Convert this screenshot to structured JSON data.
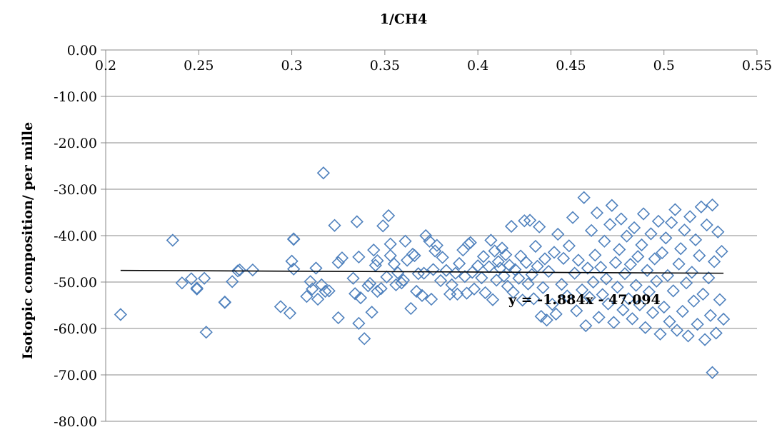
{
  "chart_data": {
    "type": "scatter",
    "title": "",
    "xlabel": "1/CH4",
    "ylabel": "Isotopic composition/ per mille",
    "xlim": [
      0.2,
      0.55
    ],
    "ylim": [
      -80,
      0
    ],
    "x_ticks": [
      "0.2",
      "0.25",
      "0.3",
      "0.35",
      "0.4",
      "0.45",
      "0.5",
      "0.55"
    ],
    "y_ticks": [
      "0.00",
      "-10.00",
      "-20.00",
      "-30.00",
      "-40.00",
      "-50.00",
      "-60.00",
      "-70.00",
      "-80.00"
    ],
    "x_axis_position": "top",
    "grid": "horizontal",
    "legend": "none",
    "marker": "diamond",
    "marker_color": "#4f81bd",
    "trendline": {
      "equation_label": "y = -1.884x - 47.094",
      "slope": -1.884,
      "intercept": -47.094,
      "x_range": [
        0.208,
        0.532
      ],
      "color": "#000000"
    },
    "series": [
      {
        "points": [
          [
            0.208,
            -57.0
          ],
          [
            0.236,
            -41.0
          ],
          [
            0.241,
            -50.2
          ],
          [
            0.246,
            -49.3
          ],
          [
            0.249,
            -51.5
          ],
          [
            0.249,
            -51.3
          ],
          [
            0.253,
            -49.2
          ],
          [
            0.254,
            -60.8
          ],
          [
            0.264,
            -54.4
          ],
          [
            0.264,
            -54.3
          ],
          [
            0.268,
            -49.9
          ],
          [
            0.271,
            -47.6
          ],
          [
            0.272,
            -47.4
          ],
          [
            0.279,
            -47.4
          ],
          [
            0.294,
            -55.3
          ],
          [
            0.299,
            -56.7
          ],
          [
            0.3,
            -45.5
          ],
          [
            0.301,
            -47.2
          ],
          [
            0.301,
            -40.8
          ],
          [
            0.301,
            -40.7
          ],
          [
            0.308,
            -53.1
          ],
          [
            0.31,
            -49.9
          ],
          [
            0.311,
            -51.5
          ],
          [
            0.313,
            -47.0
          ],
          [
            0.314,
            -53.7
          ],
          [
            0.316,
            -50.6
          ],
          [
            0.317,
            -26.5
          ],
          [
            0.318,
            -52.0
          ],
          [
            0.32,
            -51.9
          ],
          [
            0.323,
            -37.8
          ],
          [
            0.325,
            -45.8
          ],
          [
            0.325,
            -57.7
          ],
          [
            0.327,
            -44.8
          ],
          [
            0.333,
            -49.2
          ],
          [
            0.334,
            -52.5
          ],
          [
            0.335,
            -37.0
          ],
          [
            0.336,
            -58.9
          ],
          [
            0.336,
            -44.6
          ],
          [
            0.337,
            -53.4
          ],
          [
            0.339,
            -62.2
          ],
          [
            0.341,
            -50.8
          ],
          [
            0.342,
            -50.3
          ],
          [
            0.343,
            -56.5
          ],
          [
            0.344,
            -43.1
          ],
          [
            0.345,
            -46.4
          ],
          [
            0.346,
            -52.0
          ],
          [
            0.346,
            -45.4
          ],
          [
            0.348,
            -51.4
          ],
          [
            0.349,
            -37.9
          ],
          [
            0.351,
            -48.9
          ],
          [
            0.352,
            -35.7
          ],
          [
            0.353,
            -44.3
          ],
          [
            0.353,
            -41.8
          ],
          [
            0.355,
            -46.1
          ],
          [
            0.356,
            -50.6
          ],
          [
            0.357,
            -48.0
          ],
          [
            0.359,
            -50.2
          ],
          [
            0.36,
            -49.6
          ],
          [
            0.361,
            -41.2
          ],
          [
            0.362,
            -45.3
          ],
          [
            0.364,
            -55.7
          ],
          [
            0.365,
            -44.0
          ],
          [
            0.366,
            -44.3
          ],
          [
            0.367,
            -52.0
          ],
          [
            0.368,
            -48.2
          ],
          [
            0.37,
            -52.9
          ],
          [
            0.371,
            -48.1
          ],
          [
            0.372,
            -40.0
          ],
          [
            0.374,
            -41.2
          ],
          [
            0.375,
            -53.7
          ],
          [
            0.376,
            -47.3
          ],
          [
            0.377,
            -43.3
          ],
          [
            0.378,
            -42.1
          ],
          [
            0.38,
            -49.7
          ],
          [
            0.381,
            -44.7
          ],
          [
            0.383,
            -47.5
          ],
          [
            0.385,
            -52.6
          ],
          [
            0.386,
            -50.6
          ],
          [
            0.388,
            -48.1
          ],
          [
            0.389,
            -52.6
          ],
          [
            0.39,
            -46.0
          ],
          [
            0.392,
            -43.1
          ],
          [
            0.393,
            -48.8
          ],
          [
            0.394,
            -52.4
          ],
          [
            0.395,
            -41.8
          ],
          [
            0.396,
            -41.5
          ],
          [
            0.397,
            -47.9
          ],
          [
            0.398,
            -51.5
          ],
          [
            0.4,
            -46.5
          ],
          [
            0.402,
            -49.1
          ],
          [
            0.403,
            -44.5
          ],
          [
            0.404,
            -52.3
          ],
          [
            0.406,
            -46.7
          ],
          [
            0.407,
            -41.0
          ],
          [
            0.408,
            -53.8
          ],
          [
            0.409,
            -43.3
          ],
          [
            0.41,
            -49.6
          ],
          [
            0.411,
            -45.6
          ],
          [
            0.412,
            -47.0
          ],
          [
            0.413,
            -42.7
          ],
          [
            0.414,
            -48.7
          ],
          [
            0.415,
            -44.1
          ],
          [
            0.416,
            -50.9
          ],
          [
            0.417,
            -46.4
          ],
          [
            0.418,
            -38.0
          ],
          [
            0.419,
            -52.2
          ],
          [
            0.42,
            -47.3
          ],
          [
            0.422,
            -49.2
          ],
          [
            0.423,
            -44.4
          ],
          [
            0.424,
            -53.9
          ],
          [
            0.425,
            -36.8
          ],
          [
            0.426,
            -45.8
          ],
          [
            0.427,
            -50.4
          ],
          [
            0.428,
            -36.7
          ],
          [
            0.429,
            -48.4
          ],
          [
            0.43,
            -53.6
          ],
          [
            0.431,
            -42.3
          ],
          [
            0.432,
            -46.6
          ],
          [
            0.433,
            -38.1
          ],
          [
            0.434,
            -57.4
          ],
          [
            0.435,
            -51.2
          ],
          [
            0.436,
            -45.0
          ],
          [
            0.437,
            -58.2
          ],
          [
            0.438,
            -47.7
          ],
          [
            0.44,
            -54.8
          ],
          [
            0.441,
            -43.6
          ],
          [
            0.442,
            -56.9
          ],
          [
            0.443,
            -39.7
          ],
          [
            0.445,
            -50.5
          ],
          [
            0.446,
            -44.9
          ],
          [
            0.448,
            -53.0
          ],
          [
            0.449,
            -42.2
          ],
          [
            0.451,
            -36.1
          ],
          [
            0.452,
            -48.1
          ],
          [
            0.453,
            -56.2
          ],
          [
            0.454,
            -45.3
          ],
          [
            0.456,
            -51.7
          ],
          [
            0.457,
            -31.8
          ],
          [
            0.458,
            -59.4
          ],
          [
            0.459,
            -47.0
          ],
          [
            0.46,
            -53.3
          ],
          [
            0.461,
            -38.9
          ],
          [
            0.462,
            -50.0
          ],
          [
            0.463,
            -44.2
          ],
          [
            0.464,
            -35.1
          ],
          [
            0.465,
            -57.6
          ],
          [
            0.466,
            -46.8
          ],
          [
            0.467,
            -52.7
          ],
          [
            0.468,
            -41.2
          ],
          [
            0.469,
            -49.3
          ],
          [
            0.47,
            -54.7
          ],
          [
            0.471,
            -37.6
          ],
          [
            0.472,
            -33.5
          ],
          [
            0.473,
            -58.7
          ],
          [
            0.474,
            -45.8
          ],
          [
            0.475,
            -51.1
          ],
          [
            0.476,
            -43.0
          ],
          [
            0.477,
            -36.4
          ],
          [
            0.478,
            -56.0
          ],
          [
            0.479,
            -48.2
          ],
          [
            0.48,
            -40.1
          ],
          [
            0.481,
            -53.6
          ],
          [
            0.482,
            -46.2
          ],
          [
            0.483,
            -57.9
          ],
          [
            0.484,
            -38.3
          ],
          [
            0.485,
            -50.7
          ],
          [
            0.486,
            -44.5
          ],
          [
            0.487,
            -54.9
          ],
          [
            0.488,
            -42.0
          ],
          [
            0.489,
            -35.3
          ],
          [
            0.49,
            -59.8
          ],
          [
            0.491,
            -47.5
          ],
          [
            0.492,
            -52.1
          ],
          [
            0.493,
            -39.6
          ],
          [
            0.494,
            -56.6
          ],
          [
            0.495,
            -45.0
          ],
          [
            0.496,
            -49.8
          ],
          [
            0.497,
            -36.9
          ],
          [
            0.498,
            -61.2
          ],
          [
            0.499,
            -43.7
          ],
          [
            0.5,
            -55.4
          ],
          [
            0.501,
            -40.5
          ],
          [
            0.502,
            -48.6
          ],
          [
            0.503,
            -58.5
          ],
          [
            0.504,
            -37.2
          ],
          [
            0.505,
            -51.9
          ],
          [
            0.506,
            -34.4
          ],
          [
            0.507,
            -60.4
          ],
          [
            0.508,
            -46.1
          ],
          [
            0.509,
            -42.8
          ],
          [
            0.51,
            -56.3
          ],
          [
            0.511,
            -38.8
          ],
          [
            0.512,
            -50.2
          ],
          [
            0.513,
            -61.6
          ],
          [
            0.514,
            -35.9
          ],
          [
            0.515,
            -47.9
          ],
          [
            0.516,
            -54.1
          ],
          [
            0.517,
            -40.9
          ],
          [
            0.518,
            -59.1
          ],
          [
            0.519,
            -44.3
          ],
          [
            0.52,
            -33.8
          ],
          [
            0.521,
            -52.6
          ],
          [
            0.522,
            -62.4
          ],
          [
            0.523,
            -37.7
          ],
          [
            0.524,
            -49.1
          ],
          [
            0.525,
            -57.2
          ],
          [
            0.526,
            -69.5
          ],
          [
            0.526,
            -33.4
          ],
          [
            0.527,
            -45.6
          ],
          [
            0.528,
            -61.0
          ],
          [
            0.529,
            -39.2
          ],
          [
            0.53,
            -53.8
          ],
          [
            0.531,
            -43.4
          ],
          [
            0.532,
            -58.0
          ]
        ]
      }
    ]
  }
}
